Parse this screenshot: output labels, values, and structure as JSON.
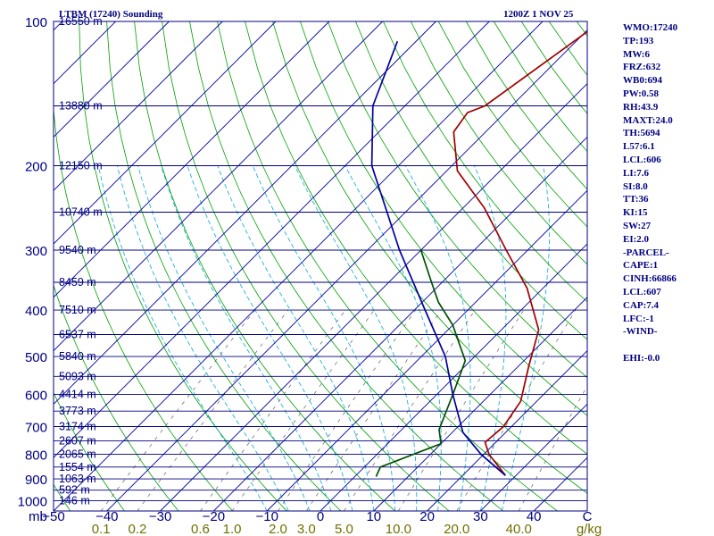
{
  "chart_data": {
    "type": "skew-t",
    "station_title": "LTBM (17240) Sounding",
    "time_label": "1200Z  1 NOV 25",
    "pressure_axis": {
      "unit_label": "mb",
      "ticks": [
        100,
        200,
        300,
        400,
        500,
        600,
        700,
        800,
        900,
        1000
      ],
      "range": [
        1050,
        100
      ]
    },
    "temperature_axis": {
      "unit_label": "C",
      "ticks": [
        -50,
        -40,
        -30,
        -20,
        -10,
        0,
        10,
        20,
        30,
        40
      ],
      "range": [
        -50,
        50
      ]
    },
    "mixing_ratio_axis": {
      "unit_label": "g/kg",
      "ticks": [
        "0.1",
        "0.2",
        "0.6",
        "1.0",
        "2.0",
        "3.0",
        "5.0",
        "10.0",
        "20.0",
        "40.0"
      ]
    },
    "height_levels": [
      {
        "label": "16550 m",
        "p": 100
      },
      {
        "label": "13880 m",
        "p": 150
      },
      {
        "label": "12150 m",
        "p": 200
      },
      {
        "label": "10740 m",
        "p": 250
      },
      {
        "label": "9540 m",
        "p": 300
      },
      {
        "label": "8459 m",
        "p": 350
      },
      {
        "label": "7510 m",
        "p": 400
      },
      {
        "label": "6537 m",
        "p": 450
      },
      {
        "label": "5840 m",
        "p": 500
      },
      {
        "label": "5093 m",
        "p": 550
      },
      {
        "label": "4414 m",
        "p": 600
      },
      {
        "label": "3773 m",
        "p": 650
      },
      {
        "label": "3174 m",
        "p": 700
      },
      {
        "label": "2607 m",
        "p": 750
      },
      {
        "label": "2065 m",
        "p": 800
      },
      {
        "label": "1554 m",
        "p": 850
      },
      {
        "label": "1063 m",
        "p": 900
      },
      {
        "label": "592 m",
        "p": 950
      },
      {
        "label": "146 m",
        "p": 1000
      }
    ],
    "series": [
      {
        "name": "temperature",
        "color": "#a00000",
        "points": [
          [
            885,
            28
          ],
          [
            800,
            21
          ],
          [
            755,
            18
          ],
          [
            700,
            18.5
          ],
          [
            620,
            17
          ],
          [
            525,
            12
          ],
          [
            440,
            7
          ],
          [
            360,
            -3
          ],
          [
            300,
            -14
          ],
          [
            245,
            -26
          ],
          [
            205,
            -38
          ],
          [
            170,
            -46
          ],
          [
            155,
            -47
          ],
          [
            150,
            -45
          ],
          [
            100,
            -39
          ]
        ]
      },
      {
        "name": "dewpoint",
        "color": "#005000",
        "points": [
          [
            890,
            4
          ],
          [
            850,
            3
          ],
          [
            760,
            10
          ],
          [
            710,
            7
          ],
          [
            600,
            3
          ],
          [
            510,
            -1
          ],
          [
            430,
            -10
          ],
          [
            385,
            -17
          ],
          [
            350,
            -22
          ],
          [
            300,
            -30
          ]
        ]
      },
      {
        "name": "parcel",
        "color": "#0000a0",
        "points": [
          [
            885,
            28
          ],
          [
            800,
            19.5
          ],
          [
            720,
            12
          ],
          [
            600,
            3
          ],
          [
            500,
            -5.5
          ],
          [
            400,
            -18
          ],
          [
            300,
            -34
          ],
          [
            200,
            -55
          ],
          [
            150,
            -66
          ],
          [
            110,
            -73.5
          ]
        ]
      }
    ]
  },
  "indices": [
    "WMO:17240",
    "TP:193",
    "MW:6",
    "FRZ:632",
    "WB0:694",
    "PW:0.58",
    "RH:43.9",
    "MAXT:24.0",
    "TH:5694",
    "L57:6.1",
    "LCL:606",
    "LI:7.6",
    "SI:8.0",
    "TT:36",
    "KI:15",
    "SW:27",
    "EI:2.0",
    "-PARCEL-",
    "CAPE:1",
    "CINH:66866",
    "LCL:607",
    "CAP:7.4",
    "LFC:-1",
    "-WIND-",
    "",
    "EHI:-0.0"
  ],
  "colors": {
    "isobar": "#000080",
    "isotherm": "#0000a0",
    "dry_adiabat": "#00a000",
    "moist_adiabat": "#00aad8",
    "mixing_ratio": "#606060",
    "label": "#000080",
    "mixing_label": "#707000"
  }
}
